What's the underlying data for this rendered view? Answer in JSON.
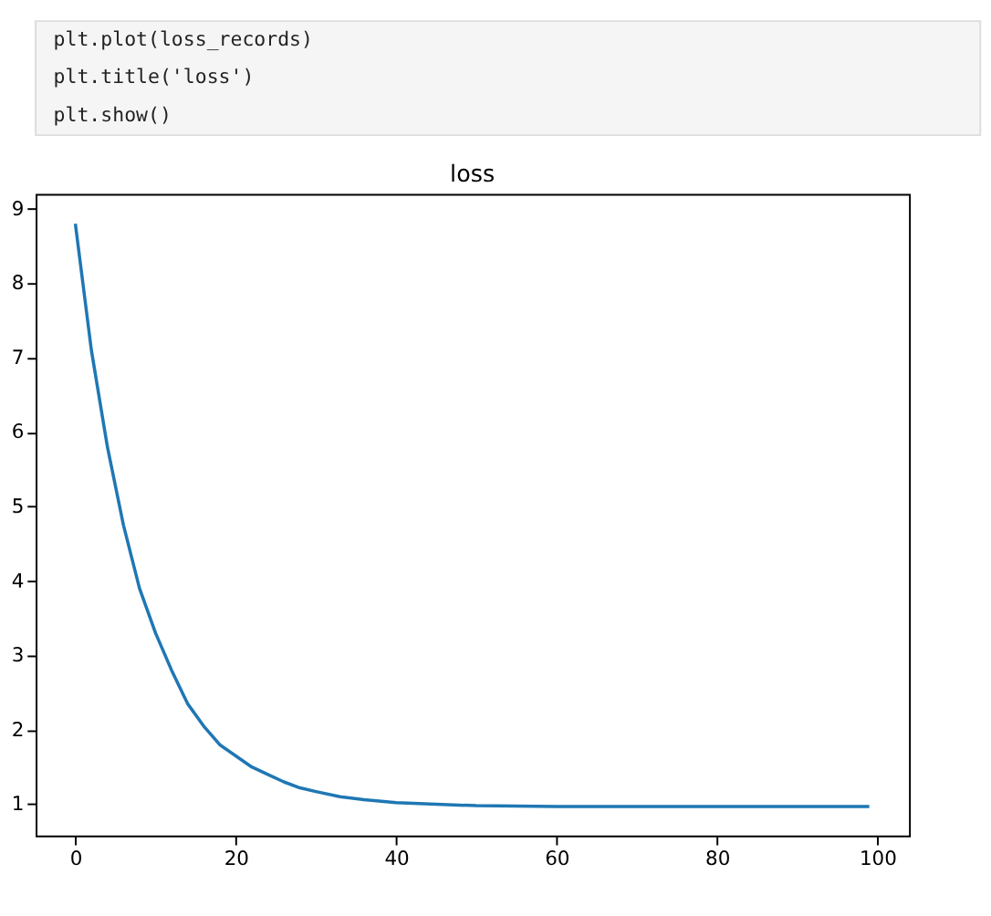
{
  "chart_data": {
    "type": "line",
    "title": "loss",
    "annotations": [
      "plt.plot(loss_records)",
      "plt.title('loss')",
      "plt.show()"
    ],
    "x": [
      0,
      2,
      4,
      6,
      8,
      10,
      12,
      14,
      16,
      18,
      20,
      22,
      24,
      26,
      28,
      30,
      33,
      36,
      40,
      45,
      50,
      60,
      70,
      80,
      90,
      99
    ],
    "series": [
      {
        "color": "#1f77b4",
        "values": [
          8.8,
          7.1,
          5.8,
          4.75,
          3.9,
          3.3,
          2.8,
          2.35,
          2.05,
          1.8,
          1.65,
          1.5,
          1.4,
          1.3,
          1.22,
          1.17,
          1.1,
          1.06,
          1.02,
          1.0,
          0.98,
          0.97,
          0.97,
          0.97,
          0.97,
          0.97
        ]
      }
    ],
    "xlim": [
      -4.95,
      103.95
    ],
    "ylim": [
      0.58,
      9.2
    ],
    "xticks": [
      0,
      20,
      40,
      60,
      80,
      100
    ],
    "yticks": [
      1,
      2,
      3,
      4,
      5,
      6,
      7,
      8,
      9
    ],
    "grid": false,
    "marker": "none",
    "line_style": "solid"
  }
}
